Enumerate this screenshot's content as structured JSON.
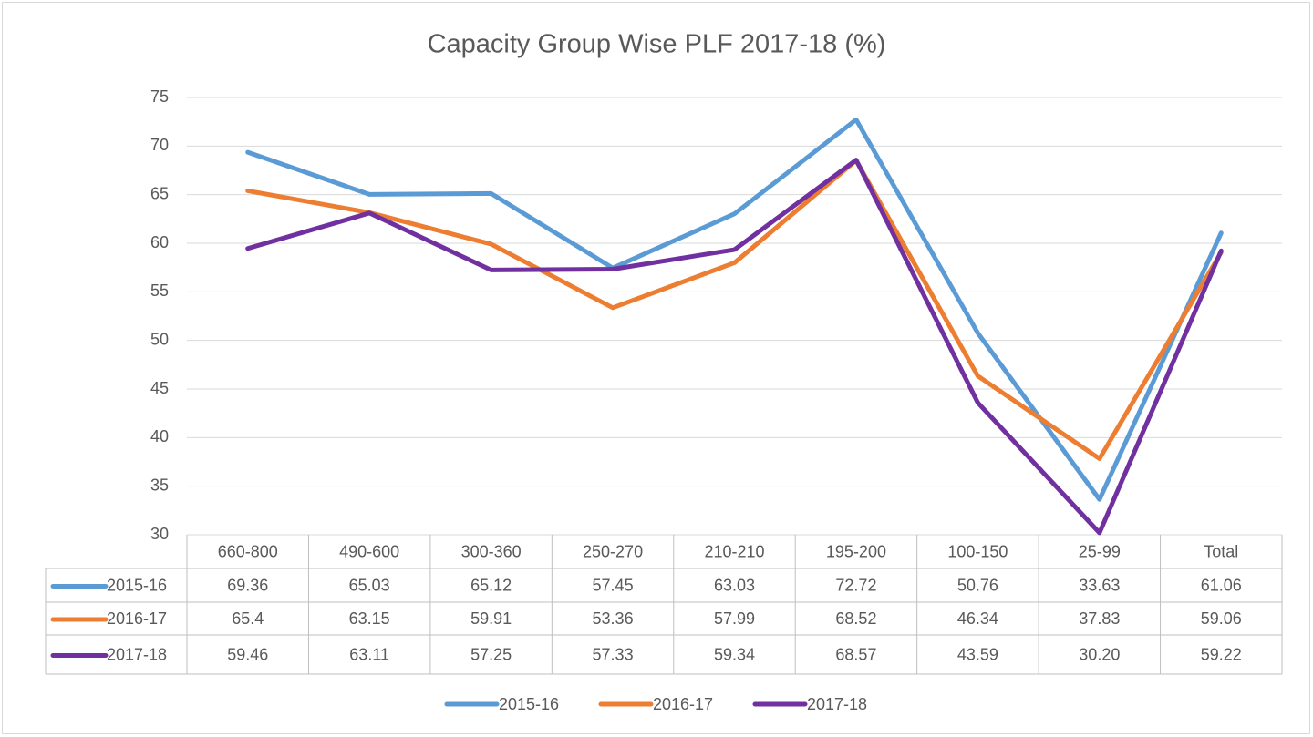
{
  "chart_data": {
    "type": "line",
    "title": "Capacity Group Wise PLF  2017-18 (%)",
    "categories": [
      "660-800",
      "490-600",
      "300-360",
      "250-270",
      "210-210",
      "195-200",
      "100-150",
      "25-99",
      "Total"
    ],
    "series": [
      {
        "name": "2015-16",
        "color": "#5b9bd5",
        "values": [
          69.36,
          65.03,
          65.12,
          57.45,
          63.03,
          72.72,
          50.76,
          33.63,
          61.06
        ]
      },
      {
        "name": "2016-17",
        "color": "#ed7d31",
        "values": [
          65.4,
          63.15,
          59.91,
          53.36,
          57.99,
          68.52,
          46.34,
          37.83,
          59.06
        ]
      },
      {
        "name": "2017-18",
        "color": "#7030a0",
        "values": [
          59.46,
          63.11,
          57.25,
          57.33,
          59.34,
          68.57,
          43.59,
          30.2,
          59.22
        ],
        "value_labels": [
          "59.46",
          "63.11",
          "57.25",
          "57.33",
          "59.34",
          "68.57",
          "43.59",
          "30.20",
          "59.22"
        ]
      }
    ],
    "ylim": [
      30,
      75
    ],
    "yticks": [
      30,
      35,
      40,
      45,
      50,
      55,
      60,
      65,
      70,
      75
    ],
    "grid": true,
    "legend": "bottom",
    "data_table": true
  }
}
